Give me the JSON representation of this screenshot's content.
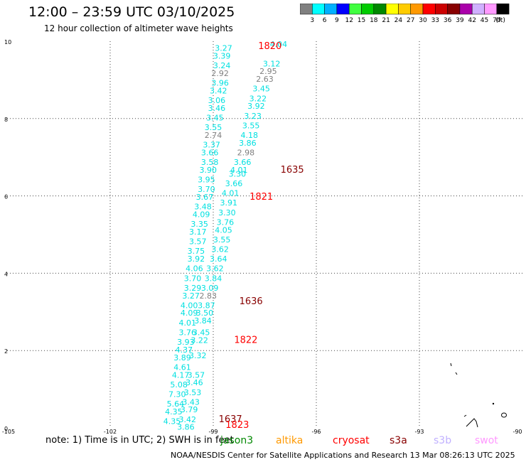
{
  "title": "12:00 – 23:59 UTC 03/10/2025",
  "subtitle": "12 hour collection of altimeter wave heights",
  "legend": {
    "unit": "(ft)",
    "items": [
      {
        "label": "3",
        "color": "#808080"
      },
      {
        "label": "6",
        "color": "#00ffff"
      },
      {
        "label": "9",
        "color": "#00b0ff"
      },
      {
        "label": "12",
        "color": "#0000ff"
      },
      {
        "label": "15",
        "color": "#40ff40"
      },
      {
        "label": "18",
        "color": "#00cc00"
      },
      {
        "label": "21",
        "color": "#008800"
      },
      {
        "label": "24",
        "color": "#ffff00"
      },
      {
        "label": "27",
        "color": "#ffcc00"
      },
      {
        "label": "30",
        "color": "#ff9900"
      },
      {
        "label": "33",
        "color": "#ff0000"
      },
      {
        "label": "36",
        "color": "#cc0000"
      },
      {
        "label": "39",
        "color": "#880000"
      },
      {
        "label": "42",
        "color": "#aa00aa"
      },
      {
        "label": "45",
        "color": "#d0b0ff"
      },
      {
        "label": "70",
        "color": "#ff99ff"
      },
      {
        "label": "",
        "color": "#000000"
      }
    ]
  },
  "note": "note:  1) Time is in UTC;  2) SWH is in feet",
  "missions": [
    {
      "name": "jason3",
      "color": "#008800"
    },
    {
      "name": "altika",
      "color": "#ff9900"
    },
    {
      "name": "cryosat",
      "color": "#ff0000"
    },
    {
      "name": "s3a",
      "color": "#880000"
    },
    {
      "name": "s3b",
      "color": "#c0b0ff"
    },
    {
      "name": "swot",
      "color": "#ff99ff"
    }
  ],
  "footer": "NOAA/NESDIS Center for Satellite Applications and Research    13 Mar 08:26:13 UTC 2025",
  "chart_data": {
    "type": "scatter",
    "xlim": [
      -105,
      -90
    ],
    "ylim": [
      0,
      10
    ],
    "x_ticks": [
      -105,
      -102,
      -99,
      -96,
      -93,
      -90
    ],
    "x_tick_labels": [
      "-105",
      "-102",
      "-99",
      "-96",
      "-93",
      "-90"
    ],
    "y_ticks": [
      0,
      2,
      4,
      6,
      8,
      10
    ],
    "y_tick_labels": [
      "0",
      "2",
      "4",
      "6",
      "8",
      "10"
    ],
    "grid": true,
    "time_labels": [
      {
        "text": "1820",
        "x": -97.35,
        "y": 9.8,
        "color": "#ff0000"
      },
      {
        "text": "1635",
        "x": -96.7,
        "y": 6.6,
        "color": "#880000"
      },
      {
        "text": "1821",
        "x": -97.6,
        "y": 5.9,
        "color": "#ff0000"
      },
      {
        "text": "1636",
        "x": -97.9,
        "y": 3.2,
        "color": "#880000"
      },
      {
        "text": "1822",
        "x": -98.05,
        "y": 2.2,
        "color": "#ff0000"
      },
      {
        "text": "1637",
        "x": -98.5,
        "y": 0.15,
        "color": "#880000"
      },
      {
        "text": "1823",
        "x": -98.3,
        "y": 0.0,
        "color": "#ff0000"
      }
    ],
    "wave_heights": [
      {
        "text": "3.27",
        "x": -98.7,
        "y": 9.75,
        "color": "#00e0e0"
      },
      {
        "text": "4.04",
        "x": -97.1,
        "y": 9.85,
        "color": "#00e0e0"
      },
      {
        "text": "3.39",
        "x": -98.75,
        "y": 9.55,
        "color": "#00e0e0"
      },
      {
        "text": "3.24",
        "x": -98.75,
        "y": 9.3,
        "color": "#00e0e0"
      },
      {
        "text": "3.12",
        "x": -97.3,
        "y": 9.35,
        "color": "#00e0e0"
      },
      {
        "text": "2.92",
        "x": -98.8,
        "y": 9.1,
        "color": "#808080"
      },
      {
        "text": "2.95",
        "x": -97.4,
        "y": 9.15,
        "color": "#808080"
      },
      {
        "text": "3.96",
        "x": -98.8,
        "y": 8.85,
        "color": "#00e0e0"
      },
      {
        "text": "2.63",
        "x": -97.5,
        "y": 8.95,
        "color": "#808080"
      },
      {
        "text": "3.42",
        "x": -98.85,
        "y": 8.65,
        "color": "#00e0e0"
      },
      {
        "text": "3.45",
        "x": -97.6,
        "y": 8.7,
        "color": "#00e0e0"
      },
      {
        "text": "3.06",
        "x": -98.9,
        "y": 8.4,
        "color": "#00e0e0"
      },
      {
        "text": "3.22",
        "x": -97.7,
        "y": 8.45,
        "color": "#00e0e0"
      },
      {
        "text": "3.46",
        "x": -98.9,
        "y": 8.2,
        "color": "#00e0e0"
      },
      {
        "text": "3.92",
        "x": -97.75,
        "y": 8.25,
        "color": "#00e0e0"
      },
      {
        "text": "3.45",
        "x": -98.95,
        "y": 7.95,
        "color": "#00e0e0"
      },
      {
        "text": "3.23",
        "x": -97.85,
        "y": 8.0,
        "color": "#00e0e0"
      },
      {
        "text": "3.55",
        "x": -99.0,
        "y": 7.7,
        "color": "#00e0e0"
      },
      {
        "text": "3.55",
        "x": -97.9,
        "y": 7.75,
        "color": "#00e0e0"
      },
      {
        "text": "2.74",
        "x": -99.0,
        "y": 7.5,
        "color": "#808080"
      },
      {
        "text": "4.18",
        "x": -97.95,
        "y": 7.5,
        "color": "#00e0e0"
      },
      {
        "text": "3.37",
        "x": -99.05,
        "y": 7.25,
        "color": "#00e0e0"
      },
      {
        "text": "3.86",
        "x": -98.0,
        "y": 7.3,
        "color": "#00e0e0"
      },
      {
        "text": "3.66",
        "x": -99.1,
        "y": 7.05,
        "color": "#00e0e0"
      },
      {
        "text": "2.98",
        "x": -98.05,
        "y": 7.05,
        "color": "#808080"
      },
      {
        "text": "3.58",
        "x": -99.1,
        "y": 6.8,
        "color": "#00e0e0"
      },
      {
        "text": "3.66",
        "x": -98.15,
        "y": 6.8,
        "color": "#00e0e0"
      },
      {
        "text": "3.90",
        "x": -99.15,
        "y": 6.6,
        "color": "#00e0e0"
      },
      {
        "text": "4.01",
        "x": -98.25,
        "y": 6.6,
        "color": "#00e0e0"
      },
      {
        "text": "3.95",
        "x": -99.2,
        "y": 6.35,
        "color": "#00e0e0"
      },
      {
        "text": "3.30",
        "x": -98.3,
        "y": 6.5,
        "color": "#00e0e0"
      },
      {
        "text": "3.70",
        "x": -99.2,
        "y": 6.1,
        "color": "#00e0e0"
      },
      {
        "text": "3.66",
        "x": -98.4,
        "y": 6.25,
        "color": "#00e0e0"
      },
      {
        "text": "3.67",
        "x": -99.25,
        "y": 5.9,
        "color": "#00e0e0"
      },
      {
        "text": "4.01",
        "x": -98.5,
        "y": 6.0,
        "color": "#00e0e0"
      },
      {
        "text": "3.48",
        "x": -99.3,
        "y": 5.65,
        "color": "#00e0e0"
      },
      {
        "text": "3.91",
        "x": -98.55,
        "y": 5.75,
        "color": "#00e0e0"
      },
      {
        "text": "4.09",
        "x": -99.35,
        "y": 5.45,
        "color": "#00e0e0"
      },
      {
        "text": "3.30",
        "x": -98.6,
        "y": 5.5,
        "color": "#00e0e0"
      },
      {
        "text": "3.35",
        "x": -99.4,
        "y": 5.2,
        "color": "#00e0e0"
      },
      {
        "text": "3.76",
        "x": -98.65,
        "y": 5.25,
        "color": "#00e0e0"
      },
      {
        "text": "3.17",
        "x": -99.45,
        "y": 5.0,
        "color": "#00e0e0"
      },
      {
        "text": "4.05",
        "x": -98.7,
        "y": 5.05,
        "color": "#00e0e0"
      },
      {
        "text": "3.57",
        "x": -99.45,
        "y": 4.75,
        "color": "#00e0e0"
      },
      {
        "text": "3.55",
        "x": -98.75,
        "y": 4.8,
        "color": "#00e0e0"
      },
      {
        "text": "3.75",
        "x": -99.5,
        "y": 4.5,
        "color": "#00e0e0"
      },
      {
        "text": "3.62",
        "x": -98.8,
        "y": 4.55,
        "color": "#00e0e0"
      },
      {
        "text": "3.92",
        "x": -99.5,
        "y": 4.3,
        "color": "#00e0e0"
      },
      {
        "text": "3.64",
        "x": -98.85,
        "y": 4.3,
        "color": "#00e0e0"
      },
      {
        "text": "4.06",
        "x": -99.55,
        "y": 4.05,
        "color": "#00e0e0"
      },
      {
        "text": "3.62",
        "x": -98.95,
        "y": 4.05,
        "color": "#00e0e0"
      },
      {
        "text": "3.70",
        "x": -99.6,
        "y": 3.8,
        "color": "#00e0e0"
      },
      {
        "text": "3.84",
        "x": -99.0,
        "y": 3.8,
        "color": "#00e0e0"
      },
      {
        "text": "3.29",
        "x": -99.6,
        "y": 3.55,
        "color": "#00e0e0"
      },
      {
        "text": "3.09",
        "x": -99.1,
        "y": 3.55,
        "color": "#00e0e0"
      },
      {
        "text": "3.27",
        "x": -99.65,
        "y": 3.35,
        "color": "#00e0e0"
      },
      {
        "text": "2.83",
        "x": -99.15,
        "y": 3.35,
        "color": "#808080"
      },
      {
        "text": "4.00",
        "x": -99.7,
        "y": 3.1,
        "color": "#00e0e0"
      },
      {
        "text": "3.87",
        "x": -99.2,
        "y": 3.1,
        "color": "#00e0e0"
      },
      {
        "text": "4.09",
        "x": -99.7,
        "y": 2.9,
        "color": "#00e0e0"
      },
      {
        "text": "3.50",
        "x": -99.25,
        "y": 2.9,
        "color": "#00e0e0"
      },
      {
        "text": "4.01",
        "x": -99.75,
        "y": 2.65,
        "color": "#00e0e0"
      },
      {
        "text": "3.84",
        "x": -99.3,
        "y": 2.7,
        "color": "#00e0e0"
      },
      {
        "text": "3.76",
        "x": -99.75,
        "y": 2.4,
        "color": "#00e0e0"
      },
      {
        "text": "3.45",
        "x": -99.35,
        "y": 2.4,
        "color": "#00e0e0"
      },
      {
        "text": "3.93",
        "x": -99.8,
        "y": 2.15,
        "color": "#00e0e0"
      },
      {
        "text": "3.22",
        "x": -99.4,
        "y": 2.2,
        "color": "#00e0e0"
      },
      {
        "text": "4.37",
        "x": -99.85,
        "y": 1.95,
        "color": "#00e0e0"
      },
      {
        "text": "3.89",
        "x": -99.9,
        "y": 1.75,
        "color": "#00e0e0"
      },
      {
        "text": "3.32",
        "x": -99.45,
        "y": 1.8,
        "color": "#00e0e0"
      },
      {
        "text": "4.61",
        "x": -99.9,
        "y": 1.5,
        "color": "#00e0e0"
      },
      {
        "text": "4.17",
        "x": -99.95,
        "y": 1.3,
        "color": "#00e0e0"
      },
      {
        "text": "3.57",
        "x": -99.5,
        "y": 1.3,
        "color": "#00e0e0"
      },
      {
        "text": "5.08",
        "x": -100.0,
        "y": 1.05,
        "color": "#00e0e0"
      },
      {
        "text": "3.46",
        "x": -99.55,
        "y": 1.1,
        "color": "#00e0e0"
      },
      {
        "text": "7.30",
        "x": -100.05,
        "y": 0.8,
        "color": "#00e0e0"
      },
      {
        "text": "3.53",
        "x": -99.6,
        "y": 0.85,
        "color": "#00e0e0"
      },
      {
        "text": "5.64",
        "x": -100.1,
        "y": 0.55,
        "color": "#00e0e0"
      },
      {
        "text": "3.43",
        "x": -99.65,
        "y": 0.6,
        "color": "#00e0e0"
      },
      {
        "text": "4.35",
        "x": -100.15,
        "y": 0.35,
        "color": "#00e0e0"
      },
      {
        "text": "3.79",
        "x": -99.7,
        "y": 0.4,
        "color": "#00e0e0"
      },
      {
        "text": "4.35",
        "x": -100.2,
        "y": 0.1,
        "color": "#00e0e0"
      },
      {
        "text": "3.42",
        "x": -99.75,
        "y": 0.15,
        "color": "#00e0e0"
      },
      {
        "text": "3.86",
        "x": -99.8,
        "y": -0.05,
        "color": "#00e0e0"
      }
    ]
  }
}
